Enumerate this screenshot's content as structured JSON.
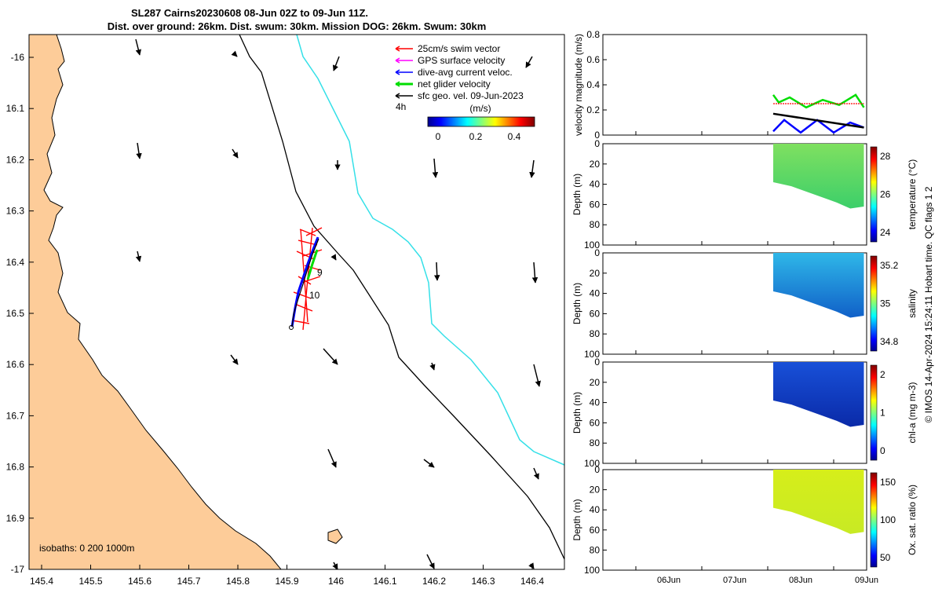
{
  "title_line1": "SL287 Cairns20230608 08-Jun 02Z to 09-Jun 11Z.",
  "title_line2": "Dist. over ground: 26km. Dist. swum: 30km. Mission DOG: 26km. Swum: 30km",
  "map": {
    "x_ticks": [
      "145.4",
      "145.5",
      "145.6",
      "145.7",
      "145.8",
      "145.9",
      "146",
      "146.1",
      "146.2",
      "146.3",
      "146.4"
    ],
    "y_ticks": [
      "-16",
      "16.1",
      "16.2",
      "16.3",
      "16.4",
      "16.5",
      "16.6",
      "16.7",
      "16.8",
      "16.9",
      "-17"
    ],
    "legend": [
      {
        "label": "25cm/s swim vector",
        "color": "#ff0000"
      },
      {
        "label": "GPS surface velocity",
        "color": "#ff00ff"
      },
      {
        "label": "dive-avg current veloc.",
        "color": "#0000ff"
      },
      {
        "label": "net glider velocity",
        "color": "#00dd00"
      },
      {
        "label": "sfc geo. vel. 09-Jun-2023",
        "color": "#000000"
      }
    ],
    "colorbar_label": "(m/s)",
    "colorbar_ticks": [
      "0",
      "0.2",
      "0.4"
    ],
    "time_label": "4h",
    "track_labels": [
      "9",
      "10"
    ],
    "isobaths_label": "isobaths: 0   200  1000m",
    "colors": {
      "land": "#fdcc99",
      "isobath_200": "#000000",
      "isobath_1000": "#35e0e8"
    }
  },
  "chart_data": [
    {
      "type": "line",
      "ylabel": "velocity magnitude (m/s)",
      "ylim": [
        0,
        0.8
      ],
      "y_ticks": [
        "0",
        "0.2",
        "0.4",
        "0.6",
        "0.8"
      ],
      "series": [
        {
          "name": "net glider velocity",
          "color": "#00dd00",
          "x": [
            "08Jun 02Z",
            "08Jun 04Z",
            "08Jun 08Z",
            "08Jun 14Z",
            "08Jun 20Z",
            "09Jun 02Z",
            "09Jun 08Z",
            "09Jun 11Z"
          ],
          "values": [
            0.32,
            0.26,
            0.3,
            0.22,
            0.28,
            0.24,
            0.32,
            0.22
          ]
        },
        {
          "name": "25cm/s swim vector",
          "color": "#ff0000",
          "x": [
            "08Jun 02Z",
            "09Jun 11Z"
          ],
          "values": [
            0.25,
            0.25
          ]
        },
        {
          "name": "dive-avg current veloc.",
          "color": "#0000ff",
          "x": [
            "08Jun 02Z",
            "08Jun 06Z",
            "08Jun 12Z",
            "08Jun 18Z",
            "09Jun 00Z",
            "09Jun 06Z",
            "09Jun 11Z"
          ],
          "values": [
            0.03,
            0.12,
            0.02,
            0.12,
            0.02,
            0.1,
            0.06
          ]
        },
        {
          "name": "sfc geo. vel.",
          "color": "#000000",
          "x": [
            "08Jun 02Z",
            "09Jun 11Z"
          ],
          "values": [
            0.17,
            0.06
          ]
        }
      ]
    },
    {
      "type": "heatmap",
      "ylabel": "Depth (m)",
      "clabel": "temperature (°C)",
      "y_ticks": [
        "0",
        "20",
        "40",
        "60",
        "80",
        "100"
      ],
      "c_ticks": [
        "24",
        "26",
        "28"
      ]
    },
    {
      "type": "heatmap",
      "ylabel": "Depth (m)",
      "clabel": "salinity",
      "y_ticks": [
        "0",
        "20",
        "40",
        "60",
        "80",
        "100"
      ],
      "c_ticks": [
        "34.8",
        "35",
        "35.2"
      ]
    },
    {
      "type": "heatmap",
      "ylabel": "Depth (m)",
      "clabel": "chl-a (mg m-3)",
      "y_ticks": [
        "0",
        "20",
        "40",
        "60",
        "80",
        "100"
      ],
      "c_ticks": [
        "0",
        "1",
        "2"
      ]
    },
    {
      "type": "heatmap",
      "ylabel": "Depth (m)",
      "clabel": "Ox. sat. ratio (%)",
      "y_ticks": [
        "0",
        "20",
        "40",
        "60",
        "80",
        "100"
      ],
      "c_ticks": [
        "50",
        "100",
        "150"
      ],
      "x_ticks": [
        "06Jun",
        "07Jun",
        "08Jun",
        "09Jun"
      ]
    }
  ],
  "side_note": "© IMOS 14-Apr-2024 15:24:11 Hobart time. QC flags 1  2"
}
